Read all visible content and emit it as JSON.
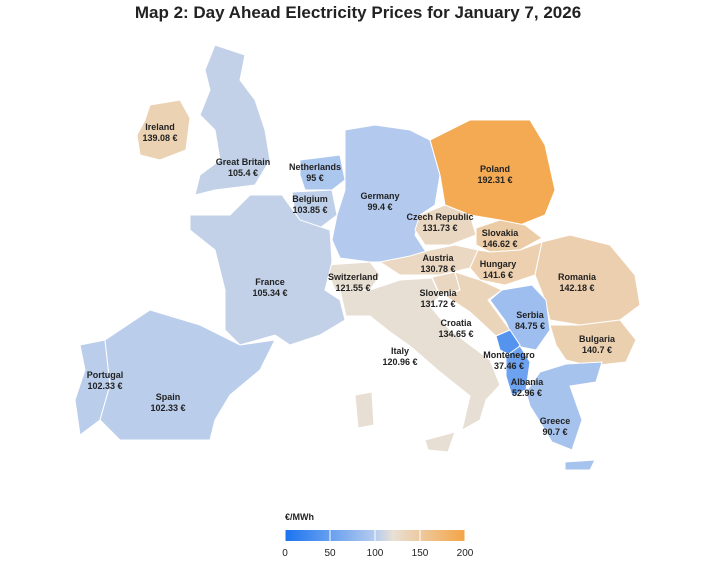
{
  "title": "Map 2: Day Ahead Electricity Prices for January 7, 2026",
  "map": {
    "regions": [
      {
        "name": "Ireland",
        "value": 139.08,
        "value_label": "139.08 €"
      },
      {
        "name": "Great Britain",
        "value": 105.4,
        "value_label": "105.4 €"
      },
      {
        "name": "Netherlands",
        "value": 95,
        "value_label": "95 €"
      },
      {
        "name": "Belgium",
        "value": 103.85,
        "value_label": "103.85 €"
      },
      {
        "name": "Germany",
        "value": 99.4,
        "value_label": "99.4 €"
      },
      {
        "name": "Poland",
        "value": 192.31,
        "value_label": "192.31 €"
      },
      {
        "name": "Czech Republic",
        "value": 131.73,
        "value_label": "131.73 €"
      },
      {
        "name": "Slovakia",
        "value": 146.62,
        "value_label": "146.62 €"
      },
      {
        "name": "Austria",
        "value": 130.78,
        "value_label": "130.78 €"
      },
      {
        "name": "Hungary",
        "value": 141.6,
        "value_label": "141.6 €"
      },
      {
        "name": "Romania",
        "value": 142.18,
        "value_label": "142.18 €"
      },
      {
        "name": "Switzerland",
        "value": 121.55,
        "value_label": "121.55 €"
      },
      {
        "name": "France",
        "value": 105.34,
        "value_label": "105.34 €"
      },
      {
        "name": "Slovenia",
        "value": 131.72,
        "value_label": "131.72 €"
      },
      {
        "name": "Croatia",
        "value": 134.65,
        "value_label": "134.65 €"
      },
      {
        "name": "Serbia",
        "value": 84.75,
        "value_label": "84.75 €"
      },
      {
        "name": "Bulgaria",
        "value": 140.7,
        "value_label": "140.7 €"
      },
      {
        "name": "Montenegro",
        "value": 37.46,
        "value_label": "37.46 €"
      },
      {
        "name": "Italy",
        "value": 120.96,
        "value_label": "120.96 €"
      },
      {
        "name": "Albania",
        "value": 52.96,
        "value_label": "52.96 €"
      },
      {
        "name": "Portugal",
        "value": 102.33,
        "value_label": "102.33 €"
      },
      {
        "name": "Spain",
        "value": 102.33,
        "value_label": "102.33 €"
      },
      {
        "name": "Greece",
        "value": 90.7,
        "value_label": "90.7 €"
      }
    ]
  },
  "legend": {
    "title": "€/MWh",
    "range": [
      0,
      200
    ],
    "ticks": [
      0,
      50,
      100,
      150,
      200
    ],
    "colorscale": [
      [
        0,
        "#1a73f0"
      ],
      [
        100,
        "#b4cbee"
      ],
      [
        120,
        "#e8e0d6"
      ],
      [
        200,
        "#f5a445"
      ]
    ]
  }
}
